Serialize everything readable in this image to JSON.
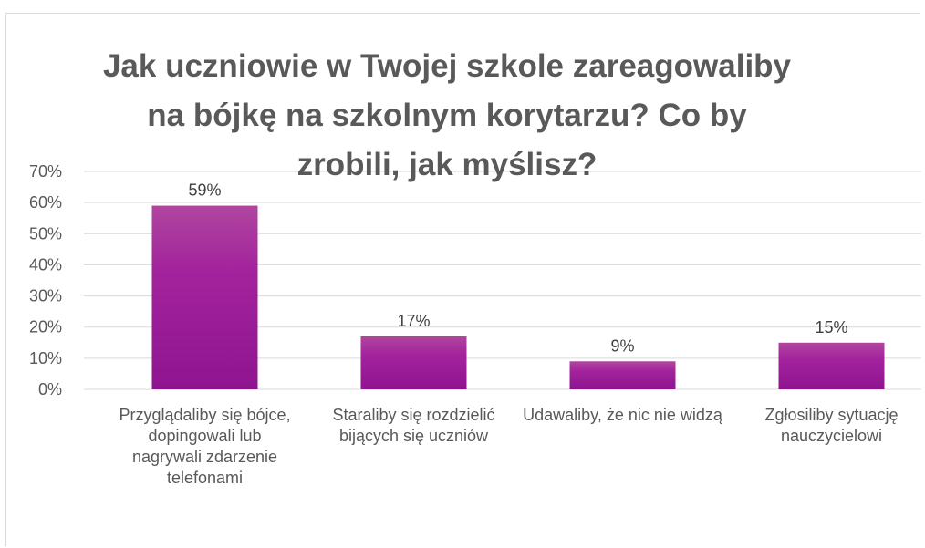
{
  "chart_data": {
    "type": "bar",
    "title": "Jak uczniowie w Twojej szkole zareagowaliby na bójkę na szkolnym korytarzu? Co by zrobili, jak myślisz?",
    "categories": [
      "Przyglądaliby się bójce, dopingowali lub\nnagrywali zdarzenie telefonami",
      "Staraliby się rozdzielić bijących się uczniów",
      "Udawaliby, że nic nie widzą",
      "Zgłosiliby sytuację nauczycielowi"
    ],
    "values": [
      59,
      17,
      9,
      15
    ],
    "data_labels": [
      "59%",
      "17%",
      "9%",
      "15%"
    ],
    "ylim": [
      0,
      70
    ],
    "yticks": [
      "0%",
      "10%",
      "20%",
      "30%",
      "40%",
      "50%",
      "60%",
      "70%"
    ],
    "grid": true,
    "legend": "none",
    "bar_color": "#a21f9a"
  }
}
